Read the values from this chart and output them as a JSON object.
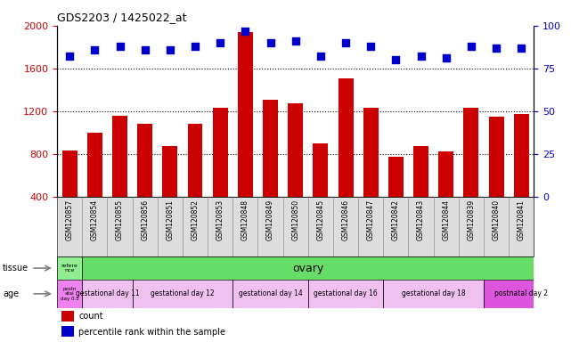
{
  "title": "GDS2203 / 1425022_at",
  "samples": [
    "GSM120857",
    "GSM120854",
    "GSM120855",
    "GSM120856",
    "GSM120851",
    "GSM120852",
    "GSM120853",
    "GSM120848",
    "GSM120849",
    "GSM120850",
    "GSM120845",
    "GSM120846",
    "GSM120847",
    "GSM120842",
    "GSM120843",
    "GSM120844",
    "GSM120839",
    "GSM120840",
    "GSM120841"
  ],
  "counts": [
    830,
    1000,
    1160,
    1080,
    870,
    1080,
    1230,
    1940,
    1310,
    1270,
    900,
    1510,
    1230,
    770,
    870,
    820,
    1230,
    1150,
    1170
  ],
  "percentiles": [
    82,
    86,
    88,
    86,
    86,
    88,
    90,
    97,
    90,
    91,
    82,
    90,
    88,
    80,
    82,
    81,
    88,
    87,
    87
  ],
  "ylim_left": [
    400,
    2000
  ],
  "ylim_right": [
    0,
    100
  ],
  "yticks_left": [
    400,
    800,
    1200,
    1600,
    2000
  ],
  "yticks_right": [
    0,
    25,
    50,
    75,
    100
  ],
  "bar_color": "#cc0000",
  "dot_color": "#0000cc",
  "bg_color": "#dddddd",
  "tissue_row": {
    "col0_label": "refere\nnce",
    "col0_color": "#90ee90",
    "main_label": "ovary",
    "main_color": "#66dd66"
  },
  "age_row": {
    "col0_label": "postn\natal\nday 0.5",
    "col0_color": "#ee82ee",
    "groups": [
      {
        "label": "gestational day 11",
        "count": 2,
        "color": "#f0c0f0"
      },
      {
        "label": "gestational day 12",
        "count": 4,
        "color": "#f0c0f0"
      },
      {
        "label": "gestational day 14",
        "count": 3,
        "color": "#f0c0f0"
      },
      {
        "label": "gestational day 16",
        "count": 3,
        "color": "#f0c0f0"
      },
      {
        "label": "gestational day 18",
        "count": 4,
        "color": "#f0c0f0"
      },
      {
        "label": "postnatal day 2",
        "count": 3,
        "color": "#dd55dd"
      }
    ]
  },
  "legend_items": [
    {
      "color": "#cc0000",
      "label": "count"
    },
    {
      "color": "#0000cc",
      "label": "percentile rank within the sample"
    }
  ]
}
